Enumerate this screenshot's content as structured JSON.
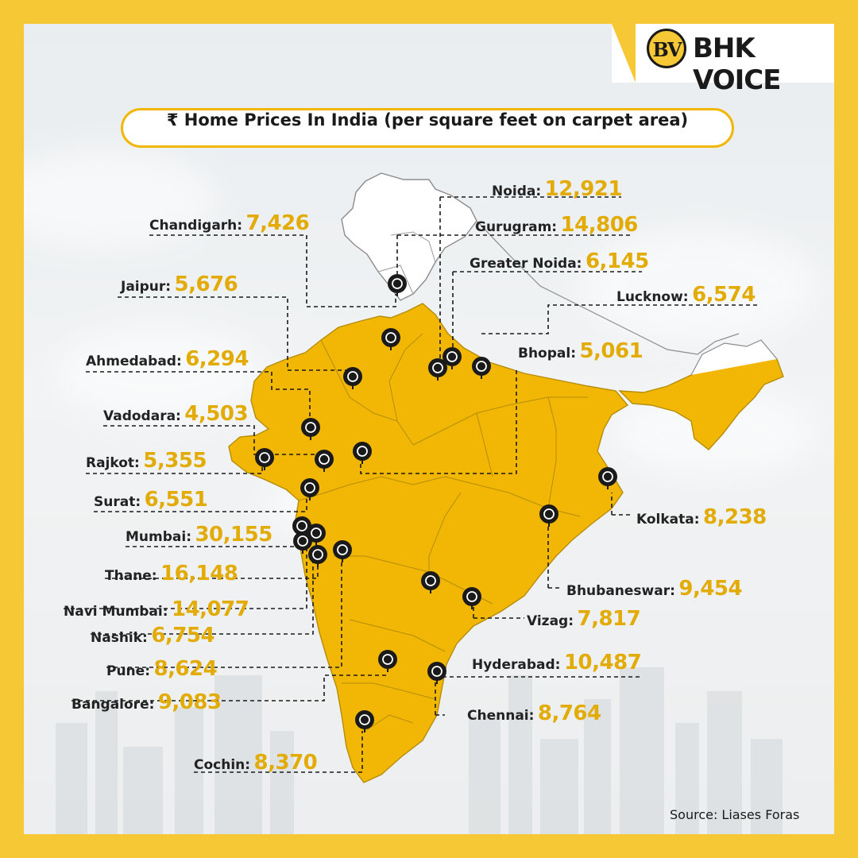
{
  "brand": {
    "badge": "BV",
    "name": "BHK VOICE"
  },
  "title": "₹ Home Prices In India (per square feet on carpet area)",
  "source": "Source: Liases Foras",
  "colors": {
    "map_fill": "#f2b705",
    "value_text": "#e2ab05",
    "pin": "#1a1a1a",
    "background": "#f7c836"
  },
  "cities": [
    {
      "name": "Noida:",
      "value": "12,921"
    },
    {
      "name": "Chandigarh:",
      "value": "7,426"
    },
    {
      "name": "Gurugram:",
      "value": "14,806"
    },
    {
      "name": "Greater Noida:",
      "value": "6,145"
    },
    {
      "name": "Jaipur:",
      "value": "5,676"
    },
    {
      "name": "Lucknow:",
      "value": "6,574"
    },
    {
      "name": "Ahmedabad:",
      "value": "6,294"
    },
    {
      "name": "Bhopal:",
      "value": "5,061"
    },
    {
      "name": "Vadodara:",
      "value": "4,503"
    },
    {
      "name": "Rajkot:",
      "value": "5,355"
    },
    {
      "name": "Surat:",
      "value": "6,551"
    },
    {
      "name": "Kolkata:",
      "value": "8,238"
    },
    {
      "name": "Mumbai:",
      "value": "30,155"
    },
    {
      "name": "Thane:",
      "value": "16,148"
    },
    {
      "name": "Bhubaneswar:",
      "value": "9,454"
    },
    {
      "name": "Navi Mumbai:",
      "value": "14,077"
    },
    {
      "name": "Vizag:",
      "value": "7,817"
    },
    {
      "name": "Nashik:",
      "value": "6,754"
    },
    {
      "name": "Pune:",
      "value": "8,624"
    },
    {
      "name": "Hyderabad:",
      "value": "10,487"
    },
    {
      "name": "Bangalore:",
      "value": "9,083"
    },
    {
      "name": "Chennai:",
      "value": "8,764"
    },
    {
      "name": "Cochin:",
      "value": "8,370"
    }
  ]
}
